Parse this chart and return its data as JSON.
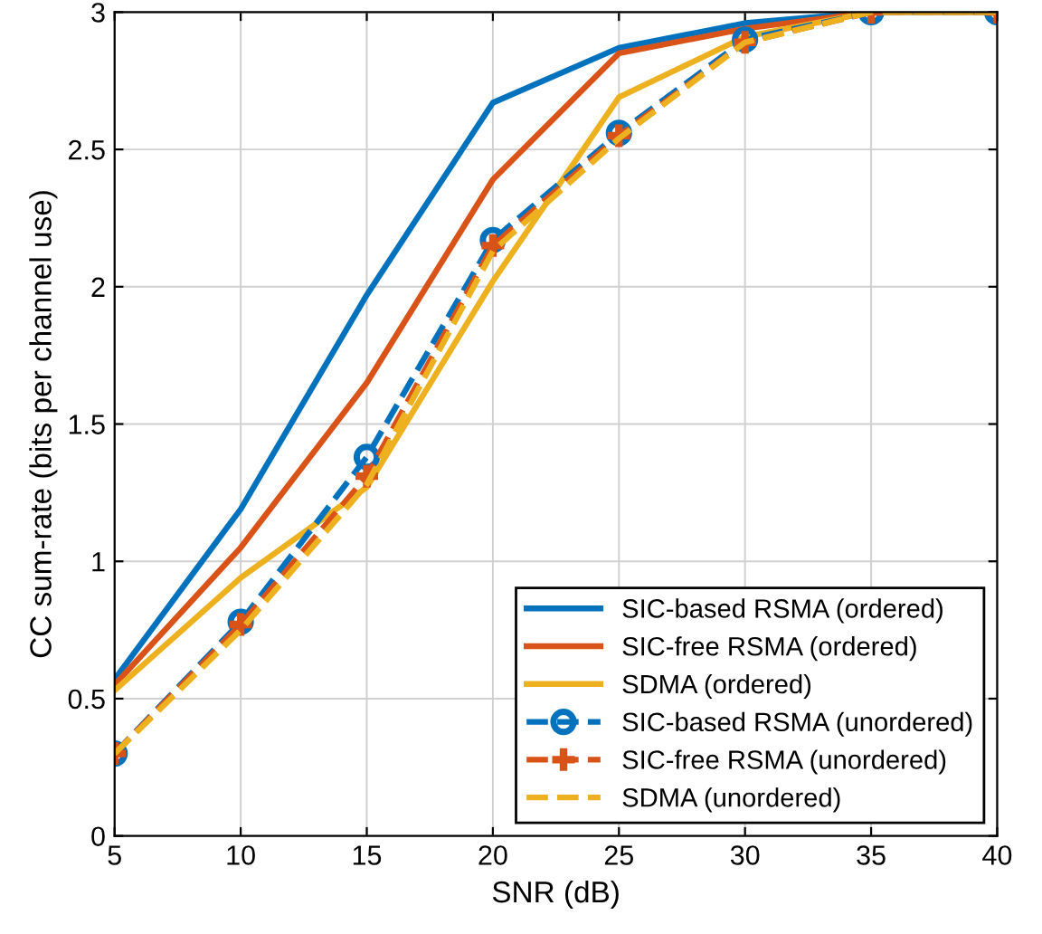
{
  "chart_data": {
    "type": "line",
    "xlabel": "SNR (dB)",
    "ylabel": "CC sum-rate (bits per channel use)",
    "x": [
      5,
      10,
      15,
      20,
      25,
      30,
      35,
      40
    ],
    "series": [
      {
        "name": "SIC-based RSMA (ordered)",
        "color": "#0072bd",
        "values": [
          0.57,
          1.19,
          1.97,
          2.67,
          2.87,
          2.96,
          3.0,
          3.0
        ],
        "line_style": "solid",
        "marker": "none"
      },
      {
        "name": "SIC-free RSMA (ordered)",
        "color": "#d95319",
        "values": [
          0.55,
          1.05,
          1.65,
          2.39,
          2.85,
          2.94,
          3.0,
          3.0
        ],
        "line_style": "solid",
        "marker": "none"
      },
      {
        "name": "SDMA (ordered)",
        "color": "#edb120",
        "values": [
          0.53,
          0.94,
          1.27,
          2.02,
          2.69,
          2.91,
          3.0,
          3.0
        ],
        "line_style": "solid",
        "marker": "none"
      },
      {
        "name": "SIC-based RSMA (unordered)",
        "color": "#0072bd",
        "values": [
          0.3,
          0.78,
          1.38,
          2.17,
          2.56,
          2.9,
          3.0,
          3.0
        ],
        "line_style": "dashed",
        "marker": "circle"
      },
      {
        "name": "SIC-free RSMA (unordered)",
        "color": "#d95319",
        "values": [
          0.3,
          0.77,
          1.31,
          2.15,
          2.55,
          2.89,
          3.0,
          3.0
        ],
        "line_style": "dashed",
        "marker": "cross"
      },
      {
        "name": "SDMA (unordered)",
        "color": "#edb120",
        "values": [
          0.3,
          0.75,
          1.28,
          2.13,
          2.54,
          2.89,
          3.0,
          3.0
        ],
        "line_style": "dashed",
        "marker": "none"
      }
    ],
    "xlim": [
      5,
      40
    ],
    "xticks": [
      5,
      10,
      15,
      20,
      25,
      30,
      35,
      40
    ],
    "ylim": [
      0,
      3
    ],
    "yticks": [
      0,
      0.5,
      1,
      1.5,
      2,
      2.5,
      3
    ],
    "grid": true,
    "legend": "bottom right"
  }
}
